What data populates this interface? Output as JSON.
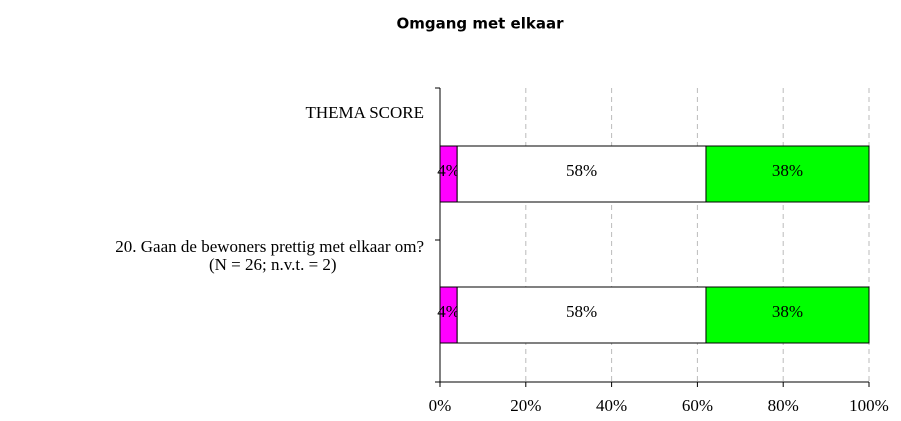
{
  "chart_data": {
    "type": "stacked-bar-horizontal",
    "title": "Omgang met elkaar",
    "categories": [
      "THEMA SCORE",
      "20. Gaan de bewoners prettig met elkaar om?\n(N = 26; n.v.t. = 2)"
    ],
    "series": [
      {
        "color": "#ff00ff",
        "values": [
          4,
          4
        ],
        "value_labels": [
          "4%",
          "4%"
        ]
      },
      {
        "color": "#ffffff",
        "values": [
          58,
          58
        ],
        "value_labels": [
          "58%",
          "58%"
        ]
      },
      {
        "color": "#00ff00",
        "values": [
          38,
          38
        ],
        "value_labels": [
          "38%",
          "38%"
        ]
      }
    ],
    "xlim": [
      0,
      100
    ],
    "xticks": [
      {
        "value": 0,
        "label": "0%"
      },
      {
        "value": 20,
        "label": "20%"
      },
      {
        "value": 40,
        "label": "40%"
      },
      {
        "value": 60,
        "label": "60%"
      },
      {
        "value": 80,
        "label": "80%"
      },
      {
        "value": 100,
        "label": "100%"
      }
    ],
    "grid": true
  }
}
